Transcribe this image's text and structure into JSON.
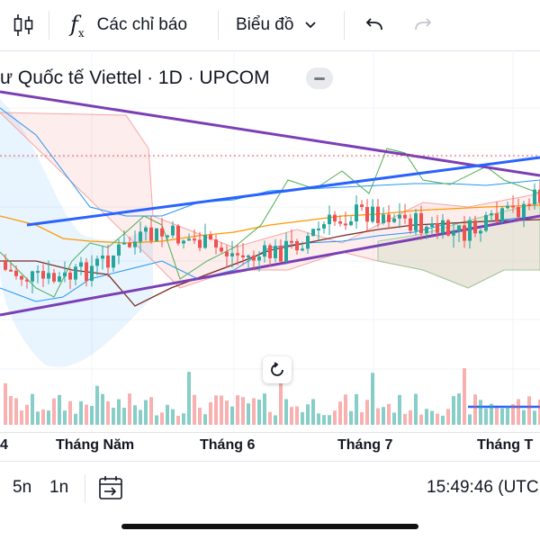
{
  "toolbar": {
    "indicators_label": "Các chỉ báo",
    "chart_type_label": "Biểu đồ",
    "icons": [
      "candles-icon",
      "function-icon",
      "chevron-down-icon",
      "undo-icon",
      "redo-icon"
    ]
  },
  "legend": {
    "symbol_title": "ư Quốc tế Viettel · 1D · UPCOM"
  },
  "x_axis": {
    "labels": [
      "4",
      "Tháng Năm",
      "Tháng 6",
      "Tháng 7",
      "Tháng T"
    ]
  },
  "bottom": {
    "range_5d": "5n",
    "range_1d": "1n",
    "time": "15:49:46 (UTC"
  },
  "colors": {
    "up": "#26a69a",
    "down": "#ef5350",
    "trendline_blue": "#2962ff",
    "trendline_purple": "#7b3fb5"
  },
  "chart_data": {
    "type": "candlestick",
    "interval": "1D",
    "exchange": "UPCOM",
    "x_tick_labels": [
      "4",
      "Tháng Năm",
      "Tháng 6",
      "Tháng 7",
      "Tháng T"
    ],
    "overlays": [
      "ichimoku-cloud",
      "bollinger-bands",
      "moving-averages",
      "trendlines",
      "volume"
    ]
  }
}
